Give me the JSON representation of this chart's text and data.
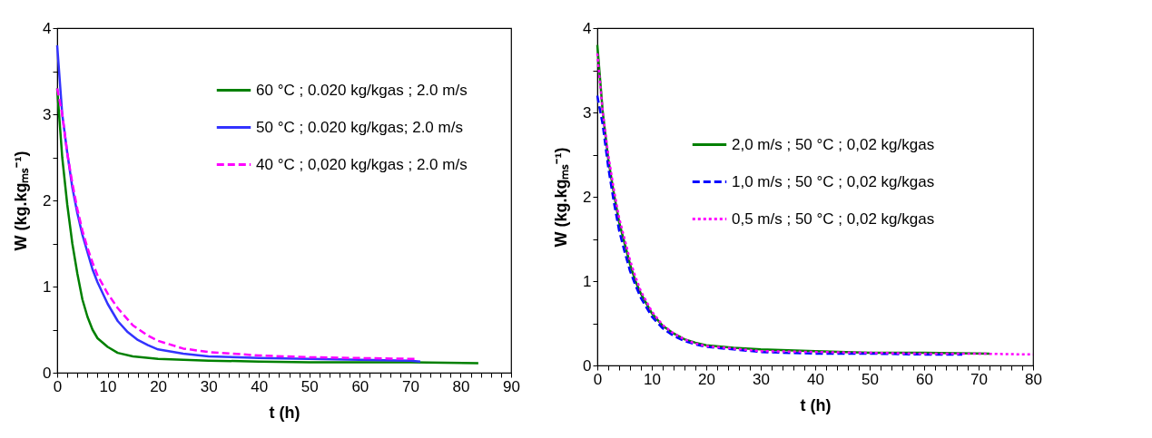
{
  "chart_data": [
    {
      "type": "line",
      "xlabel": "t (h)",
      "ylabel": "W (kg.kgₘₛ⁻¹)",
      "xlim": [
        0,
        90
      ],
      "ylim": [
        0,
        4
      ],
      "xticks": [
        0,
        {
          "value": 2,
          "label": null
        },
        {
          "value": 4,
          "label": null
        },
        {
          "value": 6,
          "label": null
        },
        {
          "value": 8,
          "label": null
        },
        10,
        {
          "value": 12,
          "label": null
        },
        {
          "value": 14,
          "label": null
        },
        {
          "value": 16,
          "label": null
        },
        {
          "value": 18,
          "label": null
        },
        20,
        {
          "value": 22,
          "label": null
        },
        {
          "value": 24,
          "label": null
        },
        {
          "value": 26,
          "label": null
        },
        {
          "value": 28,
          "label": null
        },
        30,
        {
          "value": 32,
          "label": null
        },
        {
          "value": 34,
          "label": null
        },
        {
          "value": 36,
          "label": null
        },
        {
          "value": 38,
          "label": null
        },
        40,
        {
          "value": 42,
          "label": null
        },
        {
          "value": 44,
          "label": null
        },
        {
          "value": 46,
          "label": null
        },
        {
          "value": 48,
          "label": null
        },
        50,
        {
          "value": 52,
          "label": null
        },
        {
          "value": 54,
          "label": null
        },
        {
          "value": 56,
          "label": null
        },
        {
          "value": 58,
          "label": null
        },
        60,
        {
          "value": 62,
          "label": null
        },
        {
          "value": 64,
          "label": null
        },
        {
          "value": 66,
          "label": null
        },
        {
          "value": 68,
          "label": null
        },
        70,
        {
          "value": 72,
          "label": null
        },
        {
          "value": 74,
          "label": null
        },
        {
          "value": 76,
          "label": null
        },
        {
          "value": 78,
          "label": null
        },
        80,
        {
          "value": 82,
          "label": null
        },
        {
          "value": 84,
          "label": null
        },
        {
          "value": 86,
          "label": null
        },
        {
          "value": 88,
          "label": null
        },
        90
      ],
      "yticks": [
        0,
        {
          "value": 0.5,
          "label": null
        },
        1,
        {
          "value": 1.5,
          "label": null
        },
        2,
        {
          "value": 2.5,
          "label": null
        },
        3,
        {
          "value": 3.5,
          "label": null
        },
        4
      ],
      "grid": false,
      "legend": "top right",
      "series": [
        {
          "name": "60 °C ; 0.020 kg/kgas ; 2.0 m/s",
          "color": "#008000",
          "line_style": "solid",
          "x": [
            0,
            1,
            2,
            3,
            4,
            5,
            6,
            7,
            8,
            10,
            12,
            15,
            20,
            30,
            40,
            50,
            60,
            70,
            83.5
          ],
          "values": [
            3.3,
            2.5,
            1.95,
            1.5,
            1.15,
            0.85,
            0.65,
            0.5,
            0.4,
            0.3,
            0.23,
            0.19,
            0.16,
            0.14,
            0.13,
            0.12,
            0.12,
            0.12,
            0.11
          ]
        },
        {
          "name": "50 °C ; 0.020 kg/kgas; 2.0 m/s",
          "color": "#3333ff",
          "line_style": "solid",
          "x": [
            0,
            1,
            2,
            3,
            4,
            5,
            6,
            7,
            8,
            10,
            12,
            14,
            16,
            18,
            20,
            25,
            30,
            40,
            50,
            60,
            70,
            72
          ],
          "values": [
            3.8,
            3.0,
            2.55,
            2.15,
            1.85,
            1.6,
            1.4,
            1.2,
            1.05,
            0.8,
            0.6,
            0.47,
            0.38,
            0.32,
            0.27,
            0.22,
            0.19,
            0.17,
            0.16,
            0.15,
            0.14,
            0.13
          ]
        },
        {
          "name": "40 °C ; 0,020 kg/kgas ; 2.0 m/s",
          "color": "#ff00ff",
          "line_style": "dashed",
          "x": [
            0,
            1,
            2,
            3,
            4,
            5,
            6,
            7,
            8,
            10,
            12,
            15,
            18,
            20,
            25,
            30,
            40,
            50,
            60,
            71
          ],
          "values": [
            3.3,
            3.0,
            2.55,
            2.2,
            1.9,
            1.65,
            1.45,
            1.28,
            1.13,
            0.92,
            0.75,
            0.55,
            0.43,
            0.37,
            0.28,
            0.24,
            0.2,
            0.18,
            0.17,
            0.16
          ]
        }
      ]
    },
    {
      "type": "line",
      "xlabel": "t (h)",
      "ylabel": "W (kg.kgₘₛ⁻¹)",
      "xlim": [
        0,
        80
      ],
      "ylim": [
        0,
        4
      ],
      "xticks": [
        0,
        {
          "value": 2,
          "label": null
        },
        {
          "value": 4,
          "label": null
        },
        {
          "value": 6,
          "label": null
        },
        {
          "value": 8,
          "label": null
        },
        10,
        {
          "value": 12,
          "label": null
        },
        {
          "value": 14,
          "label": null
        },
        {
          "value": 16,
          "label": null
        },
        {
          "value": 18,
          "label": null
        },
        20,
        {
          "value": 22,
          "label": null
        },
        {
          "value": 24,
          "label": null
        },
        {
          "value": 26,
          "label": null
        },
        {
          "value": 28,
          "label": null
        },
        30,
        {
          "value": 32,
          "label": null
        },
        {
          "value": 34,
          "label": null
        },
        {
          "value": 36,
          "label": null
        },
        {
          "value": 38,
          "label": null
        },
        40,
        {
          "value": 42,
          "label": null
        },
        {
          "value": 44,
          "label": null
        },
        {
          "value": 46,
          "label": null
        },
        {
          "value": 48,
          "label": null
        },
        50,
        {
          "value": 52,
          "label": null
        },
        {
          "value": 54,
          "label": null
        },
        {
          "value": 56,
          "label": null
        },
        {
          "value": 58,
          "label": null
        },
        60,
        {
          "value": 62,
          "label": null
        },
        {
          "value": 64,
          "label": null
        },
        {
          "value": 66,
          "label": null
        },
        {
          "value": 68,
          "label": null
        },
        70,
        {
          "value": 72,
          "label": null
        },
        {
          "value": 74,
          "label": null
        },
        {
          "value": 76,
          "label": null
        },
        {
          "value": 78,
          "label": null
        },
        80
      ],
      "yticks": [
        0,
        {
          "value": 0.5,
          "label": null
        },
        1,
        {
          "value": 1.5,
          "label": null
        },
        2,
        {
          "value": 2.5,
          "label": null
        },
        3,
        {
          "value": 3.5,
          "label": null
        },
        4
      ],
      "grid": false,
      "legend": "top right",
      "series": [
        {
          "name": "2,0 m/s ; 50 °C ; 0,02 kg/kgas",
          "color": "#008000",
          "line_style": "solid",
          "x": [
            0,
            1,
            2,
            3,
            4,
            5,
            6,
            7,
            8,
            10,
            12,
            14,
            16,
            18,
            20,
            25,
            30,
            40,
            50,
            60,
            72
          ],
          "values": [
            3.8,
            3.0,
            2.45,
            2.05,
            1.7,
            1.45,
            1.2,
            1.0,
            0.85,
            0.62,
            0.47,
            0.38,
            0.31,
            0.27,
            0.24,
            0.21,
            0.19,
            0.17,
            0.15,
            0.15,
            0.14
          ]
        },
        {
          "name": "1,0 m/s ; 50 °C ; 0,02 kg/kgas",
          "color": "#0000ff",
          "line_style": "dashed",
          "x": [
            0,
            1,
            2,
            3,
            4,
            5,
            6,
            7,
            8,
            10,
            12,
            14,
            16,
            18,
            20,
            25,
            30,
            40,
            50,
            60,
            67
          ],
          "values": [
            3.2,
            2.85,
            2.35,
            1.95,
            1.6,
            1.35,
            1.12,
            0.95,
            0.8,
            0.58,
            0.44,
            0.35,
            0.29,
            0.25,
            0.22,
            0.19,
            0.16,
            0.14,
            0.14,
            0.13,
            0.13
          ]
        },
        {
          "name": "0,5 m/s ; 50 °C ; 0,02 kg/kgas",
          "color": "#ff00ff",
          "line_style": "dotted",
          "x": [
            0,
            1,
            2,
            3,
            4,
            5,
            6,
            7,
            8,
            10,
            12,
            14,
            16,
            18,
            20,
            25,
            30,
            40,
            50,
            60,
            70,
            80
          ],
          "values": [
            3.7,
            3.0,
            2.5,
            2.1,
            1.75,
            1.5,
            1.25,
            1.05,
            0.88,
            0.64,
            0.48,
            0.38,
            0.31,
            0.26,
            0.23,
            0.2,
            0.17,
            0.16,
            0.15,
            0.14,
            0.14,
            0.13
          ]
        }
      ]
    }
  ]
}
